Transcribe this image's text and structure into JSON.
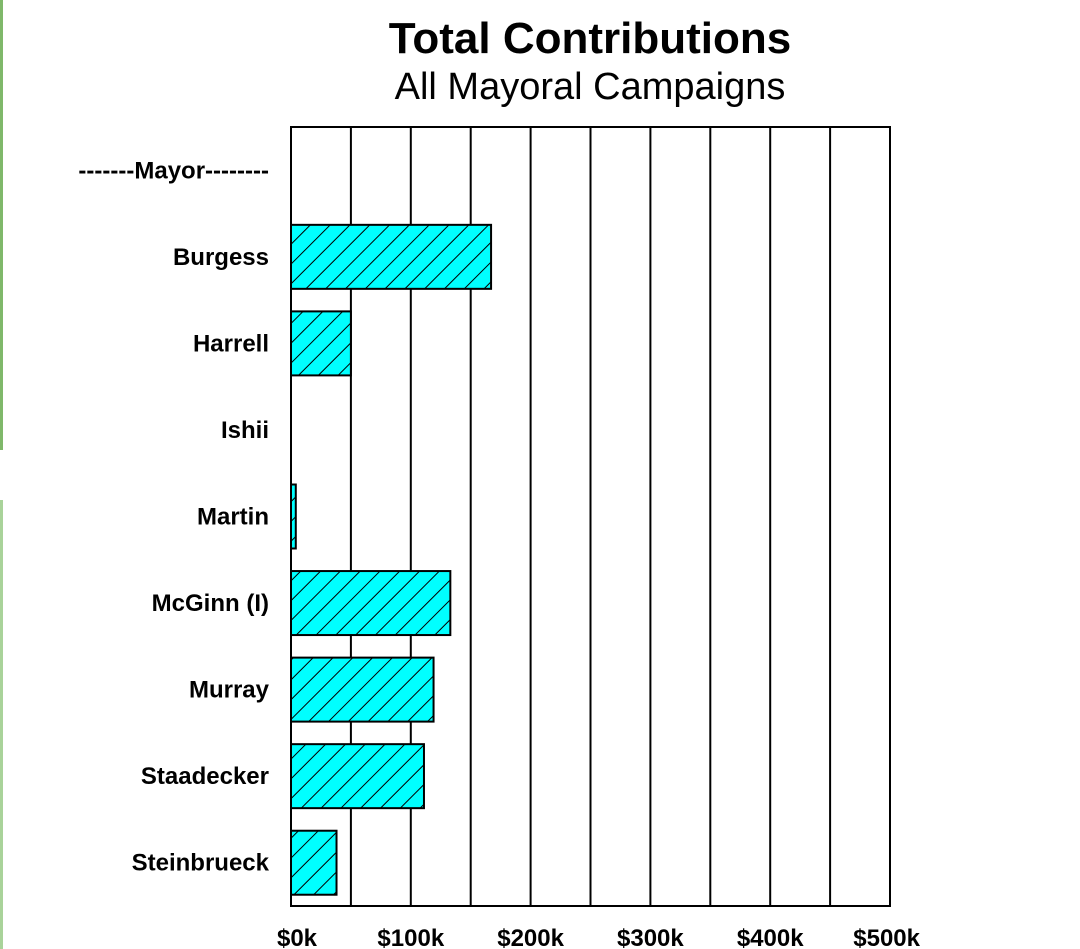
{
  "chart_data": {
    "type": "bar",
    "orientation": "horizontal",
    "title": "Total Contributions",
    "subtitle": "All Mayoral Campaigns",
    "categories": [
      "-------Mayor--------",
      "Burgess",
      "Harrell",
      "Ishii",
      "Martin",
      "McGinn (I)",
      "Murray",
      "Staadecker",
      "Steinbrueck"
    ],
    "values": [
      0,
      167000,
      50000,
      0,
      4000,
      133000,
      119000,
      111000,
      38000
    ],
    "x_ticks": [
      "$0k",
      "$100k",
      "$200k",
      "$300k",
      "$400k",
      "$500k"
    ],
    "xlim": [
      0,
      500000
    ],
    "grid": true,
    "colors": {
      "bar_fill": "#00ffff",
      "bar_stroke": "#000000",
      "hatch": "#000000",
      "grid": "#000000"
    }
  }
}
